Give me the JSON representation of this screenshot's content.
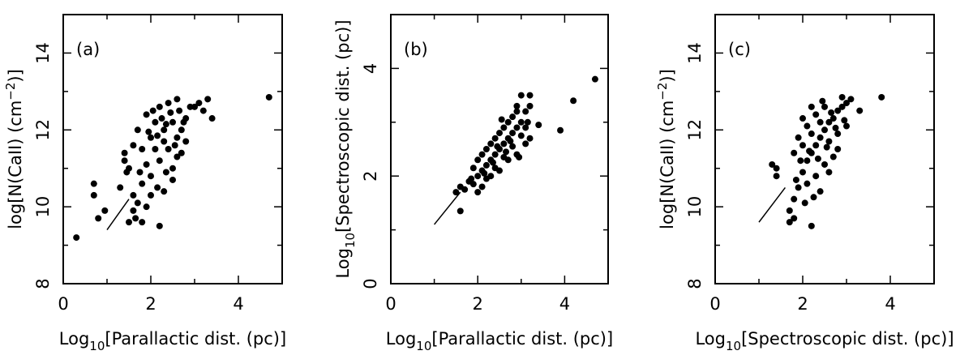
{
  "chart_data": [
    {
      "type": "scatter",
      "panel_label": "(a)",
      "xlabel_main": "Log",
      "xlabel_sub": "10",
      "xlabel_rest": "[Parallactic dist. (pc)]",
      "ylabel_main": "log[N(CaII) (cm",
      "ylabel_sup": "−2",
      "ylabel_rest": ")]",
      "xlim": [
        0,
        5
      ],
      "ylim": [
        8,
        15
      ],
      "xticks": [
        0,
        2,
        4
      ],
      "yticks": [
        8,
        10,
        12,
        14
      ],
      "fit_line": {
        "x": [
          1.0,
          1.5
        ],
        "y": [
          9.4,
          10.2
        ]
      },
      "points": [
        [
          0.3,
          9.2
        ],
        [
          0.7,
          10.3
        ],
        [
          0.7,
          10.6
        ],
        [
          0.8,
          9.7
        ],
        [
          0.95,
          9.9
        ],
        [
          4.7,
          12.85
        ],
        [
          3.4,
          12.3
        ],
        [
          3.3,
          12.8
        ],
        [
          3.2,
          12.5
        ],
        [
          3.1,
          12.7
        ],
        [
          1.5,
          9.6
        ],
        [
          1.65,
          9.7
        ],
        [
          1.8,
          9.6
        ],
        [
          1.6,
          9.9
        ],
        [
          2.2,
          9.5
        ],
        [
          1.4,
          11.2
        ],
        [
          1.4,
          11.4
        ],
        [
          1.45,
          10.9
        ],
        [
          1.3,
          10.5
        ],
        [
          1.6,
          10.3
        ],
        [
          1.7,
          10.1
        ],
        [
          1.9,
          10.0
        ],
        [
          2.0,
          10.3
        ],
        [
          2.3,
          10.4
        ],
        [
          2.5,
          11.0
        ],
        [
          2.6,
          11.3
        ],
        [
          2.7,
          12.0
        ],
        [
          2.8,
          12.3
        ],
        [
          2.9,
          12.6
        ],
        [
          3.0,
          12.6
        ],
        [
          2.6,
          12.8
        ],
        [
          2.4,
          12.7
        ],
        [
          2.2,
          12.6
        ],
        [
          1.9,
          12.4
        ],
        [
          1.7,
          12.0
        ],
        [
          1.6,
          11.6
        ],
        [
          1.5,
          11.0
        ],
        [
          1.8,
          11.5
        ],
        [
          2.0,
          11.8
        ],
        [
          2.1,
          12.2
        ],
        [
          2.3,
          12.0
        ],
        [
          2.5,
          12.2
        ],
        [
          2.4,
          11.5
        ],
        [
          2.2,
          11.2
        ],
        [
          2.0,
          10.8
        ],
        [
          1.8,
          10.6
        ],
        [
          1.9,
          11.1
        ],
        [
          2.1,
          11.5
        ],
        [
          2.3,
          11.7
        ],
        [
          2.6,
          11.8
        ],
        [
          2.8,
          11.7
        ],
        [
          2.7,
          11.4
        ],
        [
          2.5,
          10.7
        ],
        [
          2.35,
          10.9
        ],
        [
          2.15,
          10.5
        ],
        [
          1.75,
          10.9
        ],
        [
          2.05,
          12.5
        ],
        [
          2.25,
          12.3
        ],
        [
          2.45,
          12.45
        ],
        [
          2.65,
          12.5
        ],
        [
          1.95,
          11.95
        ],
        [
          2.15,
          11.85
        ],
        [
          2.35,
          12.15
        ],
        [
          2.55,
          11.6
        ],
        [
          2.75,
          12.2
        ]
      ]
    },
    {
      "type": "scatter",
      "panel_label": "(b)",
      "xlabel_main": "Log",
      "xlabel_sub": "10",
      "xlabel_rest": "[Parallactic dist. (pc)]",
      "ylabel_main": "Log",
      "ylabel_sub": "10",
      "ylabel_rest": "[Spectroscopic dist. (pc)]",
      "xlim": [
        0,
        5
      ],
      "ylim": [
        0,
        5
      ],
      "xticks": [
        0,
        2,
        4
      ],
      "yticks": [
        0,
        2,
        4
      ],
      "fit_line": {
        "x": [
          1.0,
          1.6
        ],
        "y": [
          1.1,
          1.7
        ]
      },
      "points": [
        [
          1.6,
          1.35
        ],
        [
          1.5,
          1.7
        ],
        [
          1.6,
          1.8
        ],
        [
          1.7,
          1.75
        ],
        [
          1.8,
          1.9
        ],
        [
          1.9,
          1.85
        ],
        [
          2.0,
          2.0
        ],
        [
          2.1,
          2.1
        ],
        [
          2.2,
          2.2
        ],
        [
          2.3,
          2.3
        ],
        [
          2.4,
          2.4
        ],
        [
          2.5,
          2.5
        ],
        [
          2.6,
          2.6
        ],
        [
          2.7,
          2.7
        ],
        [
          2.8,
          2.8
        ],
        [
          2.9,
          2.9
        ],
        [
          3.0,
          3.0
        ],
        [
          3.1,
          3.2
        ],
        [
          3.2,
          3.3
        ],
        [
          3.0,
          3.5
        ],
        [
          3.2,
          3.5
        ],
        [
          2.9,
          3.3
        ],
        [
          3.9,
          2.85
        ],
        [
          4.2,
          3.4
        ],
        [
          4.7,
          3.8
        ],
        [
          3.4,
          2.95
        ],
        [
          3.2,
          2.7
        ],
        [
          3.1,
          2.6
        ],
        [
          2.9,
          2.4
        ],
        [
          2.7,
          2.3
        ],
        [
          2.5,
          2.1
        ],
        [
          2.3,
          2.0
        ],
        [
          2.1,
          1.8
        ],
        [
          2.0,
          2.3
        ],
        [
          2.2,
          2.5
        ],
        [
          2.4,
          2.7
        ],
        [
          2.6,
          2.9
        ],
        [
          2.8,
          3.1
        ],
        [
          2.5,
          2.8
        ],
        [
          2.3,
          2.6
        ],
        [
          2.1,
          2.4
        ],
        [
          1.9,
          2.15
        ],
        [
          2.0,
          1.7
        ],
        [
          2.2,
          1.95
        ],
        [
          2.4,
          2.15
        ],
        [
          2.6,
          2.35
        ],
        [
          2.8,
          2.55
        ],
        [
          3.0,
          2.75
        ],
        [
          2.7,
          3.0
        ],
        [
          2.9,
          3.2
        ],
        [
          3.1,
          2.9
        ],
        [
          2.45,
          2.55
        ],
        [
          2.65,
          2.45
        ],
        [
          2.35,
          2.25
        ],
        [
          2.15,
          2.05
        ],
        [
          1.85,
          1.95
        ],
        [
          2.55,
          3.05
        ],
        [
          2.75,
          2.65
        ],
        [
          2.95,
          2.35
        ],
        [
          3.15,
          3.0
        ]
      ]
    },
    {
      "type": "scatter",
      "panel_label": "(c)",
      "xlabel_main": "Log",
      "xlabel_sub": "10",
      "xlabel_rest": "[Spectroscopic dist. (pc)]",
      "ylabel_main": "log[N(CaII) (cm",
      "ylabel_sup": "−2",
      "ylabel_rest": ")]",
      "xlim": [
        0,
        5
      ],
      "ylim": [
        8,
        15
      ],
      "xticks": [
        0,
        2,
        4
      ],
      "yticks": [
        8,
        10,
        12,
        14
      ],
      "fit_line": {
        "x": [
          1.0,
          1.6
        ],
        "y": [
          9.6,
          10.5
        ]
      },
      "points": [
        [
          1.3,
          11.1
        ],
        [
          1.4,
          11.0
        ],
        [
          1.4,
          10.8
        ],
        [
          1.7,
          9.6
        ],
        [
          1.8,
          9.7
        ],
        [
          1.7,
          9.9
        ],
        [
          2.2,
          9.5
        ],
        [
          3.8,
          12.85
        ],
        [
          3.3,
          12.5
        ],
        [
          3.1,
          12.8
        ],
        [
          3.0,
          12.7
        ],
        [
          2.9,
          12.85
        ],
        [
          1.8,
          10.2
        ],
        [
          1.9,
          10.5
        ],
        [
          2.0,
          10.9
        ],
        [
          2.1,
          11.2
        ],
        [
          2.2,
          11.4
        ],
        [
          2.3,
          11.6
        ],
        [
          2.4,
          11.8
        ],
        [
          2.5,
          12.0
        ],
        [
          2.6,
          12.2
        ],
        [
          2.7,
          12.3
        ],
        [
          2.8,
          12.5
        ],
        [
          2.9,
          12.6
        ],
        [
          2.5,
          12.6
        ],
        [
          2.3,
          12.4
        ],
        [
          2.1,
          12.1
        ],
        [
          1.9,
          11.8
        ],
        [
          1.8,
          11.4
        ],
        [
          2.0,
          11.6
        ],
        [
          2.2,
          11.9
        ],
        [
          2.4,
          12.2
        ],
        [
          2.6,
          11.7
        ],
        [
          2.8,
          11.9
        ],
        [
          3.0,
          12.1
        ],
        [
          2.7,
          11.3
        ],
        [
          2.5,
          11.1
        ],
        [
          2.3,
          10.8
        ],
        [
          2.1,
          10.6
        ],
        [
          2.4,
          10.4
        ],
        [
          2.6,
          10.9
        ],
        [
          2.8,
          11.5
        ],
        [
          2.0,
          12.3
        ],
        [
          2.2,
          12.6
        ],
        [
          2.45,
          12.75
        ],
        [
          1.95,
          11.2
        ],
        [
          2.15,
          11.45
        ],
        [
          2.35,
          11.25
        ],
        [
          2.55,
          11.55
        ],
        [
          2.65,
          12.45
        ],
        [
          2.25,
          10.25
        ],
        [
          2.05,
          10.1
        ],
        [
          1.85,
          10.7
        ],
        [
          2.75,
          12.05
        ],
        [
          2.95,
          12.25
        ]
      ]
    }
  ]
}
